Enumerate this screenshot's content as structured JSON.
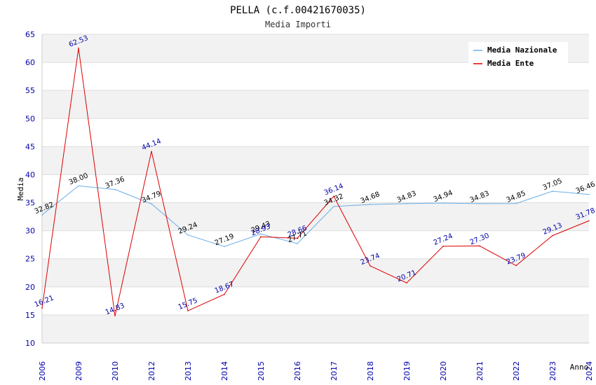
{
  "chart_data": {
    "type": "line",
    "title": "PELLA (c.f.00421670035)",
    "subtitle": "Media Importi",
    "xlabel": "Anno",
    "ylabel": "Media",
    "ylim": [
      10,
      65
    ],
    "yticks": [
      10,
      15,
      20,
      25,
      30,
      35,
      40,
      45,
      50,
      55,
      60,
      65
    ],
    "categories": [
      "2006",
      "2009",
      "2010",
      "2012",
      "2013",
      "2014",
      "2015",
      "2016",
      "2017",
      "2018",
      "2019",
      "2020",
      "2021",
      "2022",
      "2023",
      "2024"
    ],
    "legend_position": "top-right",
    "series": [
      {
        "name": "Media Nazionale",
        "color": "#6aaee6",
        "values": [
          32.82,
          38.0,
          37.36,
          34.79,
          29.24,
          27.19,
          29.43,
          27.71,
          34.32,
          34.68,
          34.83,
          34.94,
          34.83,
          34.85,
          37.05,
          36.46
        ],
        "labels": [
          "32.82",
          "38.00",
          "37.36",
          "34.79",
          "29.24",
          "27.19",
          "29.43",
          "27.71",
          "34.32",
          "34.68",
          "34.83",
          "34.94",
          "34.83",
          "34.85",
          "37.05",
          "36.46"
        ]
      },
      {
        "name": "Media Ente",
        "color": "#dd0000",
        "values": [
          16.21,
          62.53,
          14.83,
          44.14,
          15.75,
          18.67,
          28.93,
          28.66,
          36.14,
          23.74,
          20.71,
          27.24,
          27.3,
          23.79,
          29.13,
          31.78
        ],
        "labels": [
          "16.21",
          "62.53",
          "14.83",
          "44.14",
          "15.75",
          "18.67",
          "28.93",
          "28.66",
          "36.14",
          "23.74",
          "20.71",
          "27.24",
          "27.30",
          "23.79",
          "29.13",
          "31.78"
        ]
      }
    ]
  }
}
